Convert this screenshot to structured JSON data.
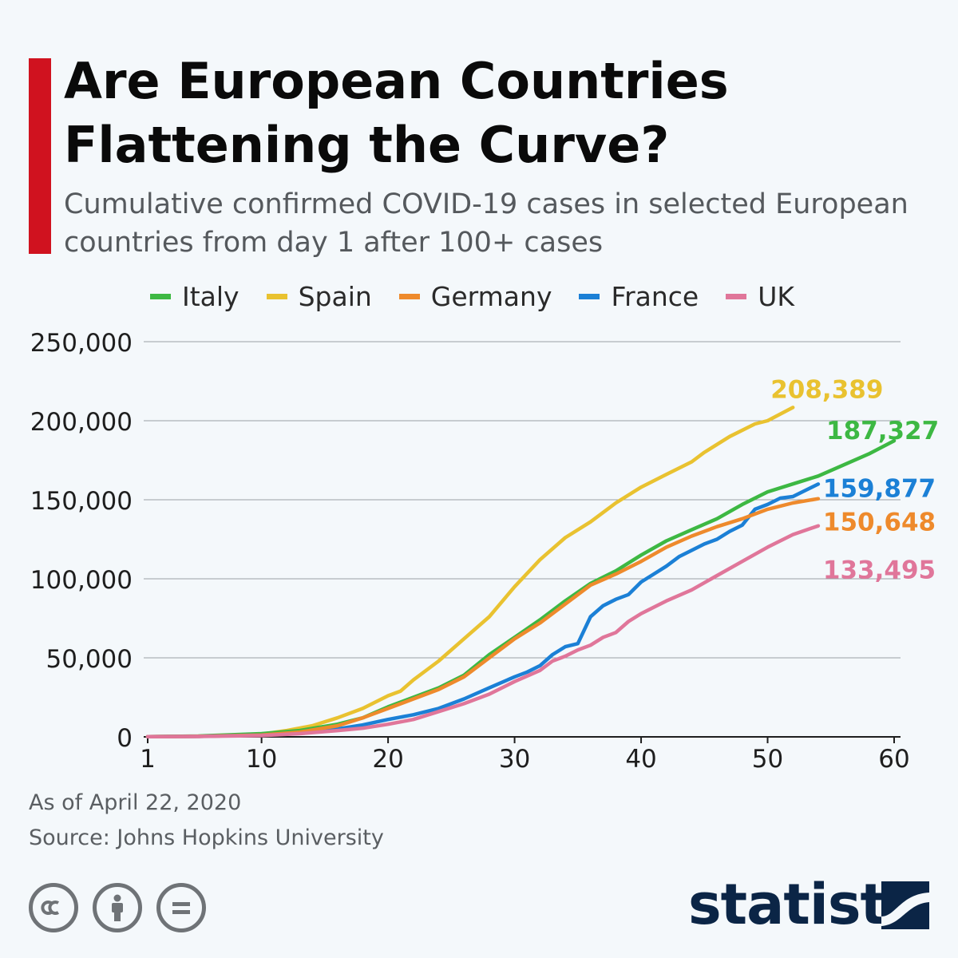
{
  "header": {
    "title": "Are European Countries Flattening the Curve?",
    "subtitle": "Cumulative confirmed COVID-19 cases in selected European countries from day 1 after 100+ cases"
  },
  "legend": [
    {
      "name": "Italy",
      "color": "#3db843"
    },
    {
      "name": "Spain",
      "color": "#e9c230"
    },
    {
      "name": "Germany",
      "color": "#ee8a2c"
    },
    {
      "name": "France",
      "color": "#1b80d6"
    },
    {
      "name": "UK",
      "color": "#e0769a"
    }
  ],
  "footer": {
    "date_note": "As of April 22, 2020",
    "source": "Source: Johns Hopkins University"
  },
  "license_icons": [
    "cc-icon",
    "by-icon",
    "nd-icon"
  ],
  "brand": {
    "name": "statista",
    "color": "#0b2546"
  },
  "colors": {
    "accent": "#d0121f"
  },
  "chart_data": {
    "type": "line",
    "xlim": [
      1,
      60
    ],
    "ylim": [
      0,
      250000
    ],
    "xticks": [
      1,
      10,
      20,
      30,
      40,
      50,
      60
    ],
    "xtick_labels": [
      "1",
      "10",
      "20",
      "30",
      "40",
      "50",
      "60"
    ],
    "yticks": [
      0,
      50000,
      100000,
      150000,
      200000,
      250000
    ],
    "ytick_labels": [
      "0",
      "50,000",
      "100,000",
      "150,000",
      "200,000",
      "250,000"
    ],
    "grid": true,
    "legend_position": "top",
    "series": [
      {
        "name": "Spain",
        "color": "#e9c230",
        "end_label": "208,389",
        "points": [
          [
            1,
            150
          ],
          [
            5,
            400
          ],
          [
            10,
            1700
          ],
          [
            12,
            4000
          ],
          [
            14,
            7000
          ],
          [
            16,
            12000
          ],
          [
            18,
            18000
          ],
          [
            20,
            26000
          ],
          [
            21,
            29000
          ],
          [
            22,
            36000
          ],
          [
            24,
            48000
          ],
          [
            26,
            62000
          ],
          [
            28,
            76000
          ],
          [
            30,
            95000
          ],
          [
            32,
            112000
          ],
          [
            34,
            126000
          ],
          [
            36,
            136000
          ],
          [
            38,
            148000
          ],
          [
            40,
            158000
          ],
          [
            42,
            166000
          ],
          [
            44,
            174000
          ],
          [
            45,
            180000
          ],
          [
            47,
            190000
          ],
          [
            49,
            198000
          ],
          [
            50,
            200000
          ],
          [
            52,
            208389
          ]
        ]
      },
      {
        "name": "Italy",
        "color": "#3db843",
        "end_label": "187,327",
        "points": [
          [
            1,
            150
          ],
          [
            5,
            500
          ],
          [
            10,
            2000
          ],
          [
            13,
            4000
          ],
          [
            16,
            8000
          ],
          [
            18,
            12000
          ],
          [
            20,
            19000
          ],
          [
            22,
            25000
          ],
          [
            24,
            31000
          ],
          [
            26,
            39000
          ],
          [
            28,
            52000
          ],
          [
            30,
            63000
          ],
          [
            32,
            74000
          ],
          [
            34,
            86000
          ],
          [
            36,
            97000
          ],
          [
            38,
            105000
          ],
          [
            40,
            115000
          ],
          [
            42,
            124000
          ],
          [
            44,
            131000
          ],
          [
            46,
            138000
          ],
          [
            48,
            147000
          ],
          [
            50,
            155000
          ],
          [
            52,
            160000
          ],
          [
            54,
            165000
          ],
          [
            56,
            172000
          ],
          [
            58,
            179000
          ],
          [
            60,
            187327
          ]
        ]
      },
      {
        "name": "France",
        "color": "#1b80d6",
        "end_label": "159,877",
        "points": [
          [
            1,
            130
          ],
          [
            5,
            300
          ],
          [
            10,
            1200
          ],
          [
            13,
            2500
          ],
          [
            16,
            5000
          ],
          [
            18,
            7500
          ],
          [
            20,
            11000
          ],
          [
            22,
            14000
          ],
          [
            24,
            18000
          ],
          [
            26,
            24000
          ],
          [
            28,
            31000
          ],
          [
            30,
            38000
          ],
          [
            31,
            41000
          ],
          [
            32,
            45000
          ],
          [
            33,
            52000
          ],
          [
            34,
            57000
          ],
          [
            35,
            59000
          ],
          [
            36,
            76000
          ],
          [
            37,
            83000
          ],
          [
            38,
            87000
          ],
          [
            39,
            90000
          ],
          [
            40,
            98000
          ],
          [
            41,
            103000
          ],
          [
            42,
            108000
          ],
          [
            43,
            114000
          ],
          [
            44,
            118000
          ],
          [
            45,
            122000
          ],
          [
            46,
            125000
          ],
          [
            47,
            130000
          ],
          [
            48,
            134000
          ],
          [
            49,
            144000
          ],
          [
            50,
            147000
          ],
          [
            51,
            151000
          ],
          [
            52,
            152000
          ],
          [
            53,
            156000
          ],
          [
            54,
            159877
          ]
        ]
      },
      {
        "name": "Germany",
        "color": "#ee8a2c",
        "end_label": "150,648",
        "points": [
          [
            1,
            130
          ],
          [
            5,
            300
          ],
          [
            10,
            1100
          ],
          [
            13,
            3000
          ],
          [
            16,
            7000
          ],
          [
            18,
            12000
          ],
          [
            20,
            18000
          ],
          [
            22,
            24000
          ],
          [
            24,
            30000
          ],
          [
            26,
            38000
          ],
          [
            28,
            50000
          ],
          [
            30,
            62000
          ],
          [
            32,
            72000
          ],
          [
            34,
            84000
          ],
          [
            36,
            96000
          ],
          [
            38,
            103000
          ],
          [
            40,
            111000
          ],
          [
            42,
            120000
          ],
          [
            44,
            127000
          ],
          [
            46,
            133000
          ],
          [
            48,
            138000
          ],
          [
            50,
            144000
          ],
          [
            52,
            148000
          ],
          [
            54,
            150648
          ]
        ]
      },
      {
        "name": "UK",
        "color": "#e0769a",
        "end_label": "133,495",
        "points": [
          [
            1,
            100
          ],
          [
            5,
            250
          ],
          [
            10,
            800
          ],
          [
            13,
            2000
          ],
          [
            16,
            4000
          ],
          [
            18,
            5500
          ],
          [
            20,
            8000
          ],
          [
            22,
            11000
          ],
          [
            24,
            16000
          ],
          [
            26,
            21000
          ],
          [
            28,
            27000
          ],
          [
            30,
            35000
          ],
          [
            32,
            42000
          ],
          [
            33,
            48000
          ],
          [
            34,
            51000
          ],
          [
            35,
            55000
          ],
          [
            36,
            58000
          ],
          [
            37,
            63000
          ],
          [
            38,
            66000
          ],
          [
            39,
            73000
          ],
          [
            40,
            78000
          ],
          [
            42,
            86000
          ],
          [
            44,
            93000
          ],
          [
            46,
            102000
          ],
          [
            48,
            111000
          ],
          [
            50,
            120000
          ],
          [
            52,
            128000
          ],
          [
            54,
            133495
          ]
        ]
      }
    ]
  }
}
